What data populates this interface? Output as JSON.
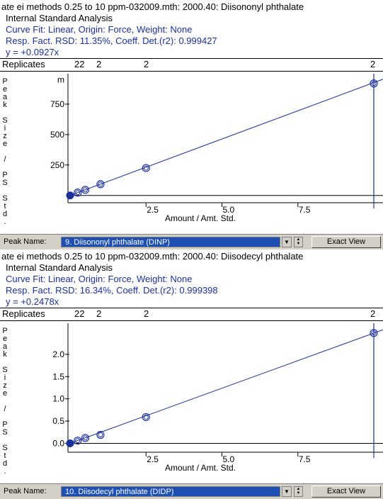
{
  "panels": [
    {
      "header": {
        "title": "ate ei methods 0.25 to 10 ppm-032009.mth:  2000.40:  Diisononyl phthalate",
        "analysis": "Internal Standard Analysis",
        "curve_fit": "Curve Fit: Linear, Origin: Force, Weight: None",
        "rsd": "Resp. Fact. RSD:  11.35%,    Coeff. Det.(r2):  0.999427",
        "equation": "y =  +0.0927x"
      },
      "replicates": {
        "title": "Replicates",
        "numbers": [
          "22",
          "2",
          "2",
          "2"
        ]
      },
      "y_unit": "m",
      "peak_name_label": "Peak Name:",
      "peak_name_value": "9.  Diisononyl phthalate (DINP)",
      "exact_view_label": "Exact View"
    },
    {
      "header": {
        "title": "ate ei methods 0.25 to 10 ppm-032009.mth:  2000.40:  Diisodecyl phthalate",
        "analysis": "Internal Standard Analysis",
        "curve_fit": "Curve Fit: Linear, Origin: Force, Weight: None",
        "rsd": "Resp. Fact. RSD:  16.34%,    Coeff. Det.(r2):  0.999398",
        "equation": "y =  +0.2478x"
      },
      "replicates": {
        "title": "Replicates",
        "numbers": [
          "22",
          "2",
          "2",
          "2"
        ]
      },
      "y_unit": "",
      "peak_name_label": "Peak Name:",
      "peak_name_value": "10.  Diisodecyl phthalate (DIDP)",
      "exact_view_label": "Exact View"
    }
  ],
  "chart_data": [
    {
      "type": "scatter",
      "title": "",
      "xlabel": "Amount / Amt. Std.",
      "ylabel": "Peak Size / PS Std.",
      "y_unit_label": "m",
      "x_ticks": [
        "2.5",
        "5.0",
        "7.5"
      ],
      "y_ticks": [
        "250",
        "500",
        "750"
      ],
      "xlim": [
        0,
        10.3
      ],
      "ylim": [
        -60,
        1000
      ],
      "points_x": [
        0,
        0.25,
        0.5,
        1.0,
        2.5,
        10.0
      ],
      "points_y": [
        0,
        23,
        46,
        92,
        225,
        920
      ],
      "fit_line": {
        "slope": 0.0927,
        "intercept": 0
      }
    },
    {
      "type": "scatter",
      "title": "",
      "xlabel": "Amount / Amt. Std.",
      "ylabel": "Peak Size / PS Std.",
      "x_ticks": [
        "2.5",
        "5.0",
        "7.5"
      ],
      "y_ticks": [
        "0.0",
        "0.5",
        "1.0",
        "1.5",
        "2.0"
      ],
      "xlim": [
        0,
        10.3
      ],
      "ylim": [
        -0.2,
        2.7
      ],
      "points_x": [
        0,
        0.25,
        0.5,
        1.0,
        2.5,
        10.0
      ],
      "points_y": [
        0,
        0.06,
        0.12,
        0.19,
        0.59,
        2.48
      ],
      "fit_line": {
        "slope": 0.2478,
        "intercept": 0
      }
    }
  ]
}
